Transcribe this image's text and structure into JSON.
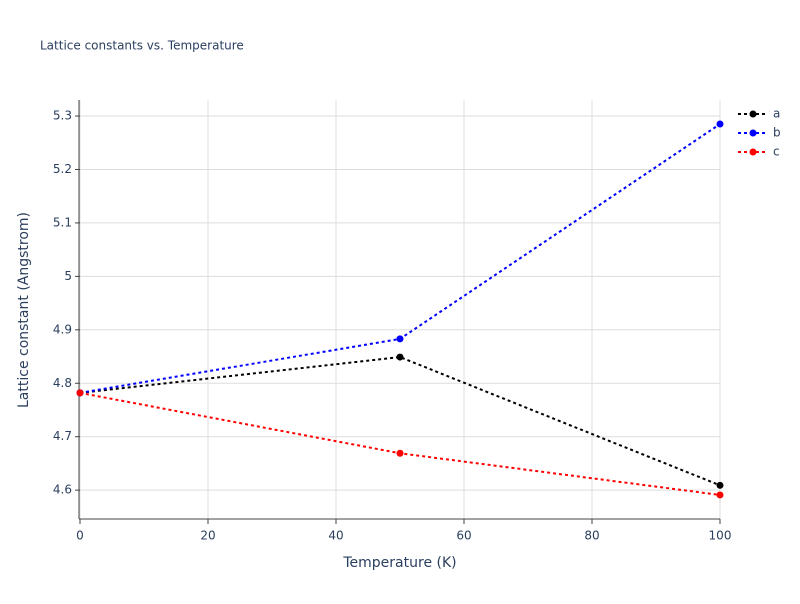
{
  "chart_data": {
    "type": "line",
    "title": "Lattice constants vs. Temperature",
    "x_label": "Temperature (K)",
    "y_label": "Lattice constant (Angstrom)",
    "x": [
      0,
      50,
      100
    ],
    "series": [
      {
        "name": "a",
        "color": "#000000",
        "values": [
          4.782,
          4.849,
          4.609
        ]
      },
      {
        "name": "b",
        "color": "#0000ff",
        "values": [
          4.782,
          4.883,
          5.285
        ]
      },
      {
        "name": "c",
        "color": "#ff0000",
        "values": [
          4.782,
          4.669,
          4.591
        ]
      }
    ],
    "xlim": [
      0,
      100
    ],
    "xticks": [
      0,
      20,
      40,
      60,
      80,
      100
    ],
    "ylim": [
      4.546,
      5.33
    ],
    "yticks": [
      4.6,
      4.7,
      4.8,
      4.9,
      5,
      5.1,
      5.2,
      5.3
    ],
    "grid": true,
    "legend": "top-right",
    "line_style": "dotted"
  }
}
